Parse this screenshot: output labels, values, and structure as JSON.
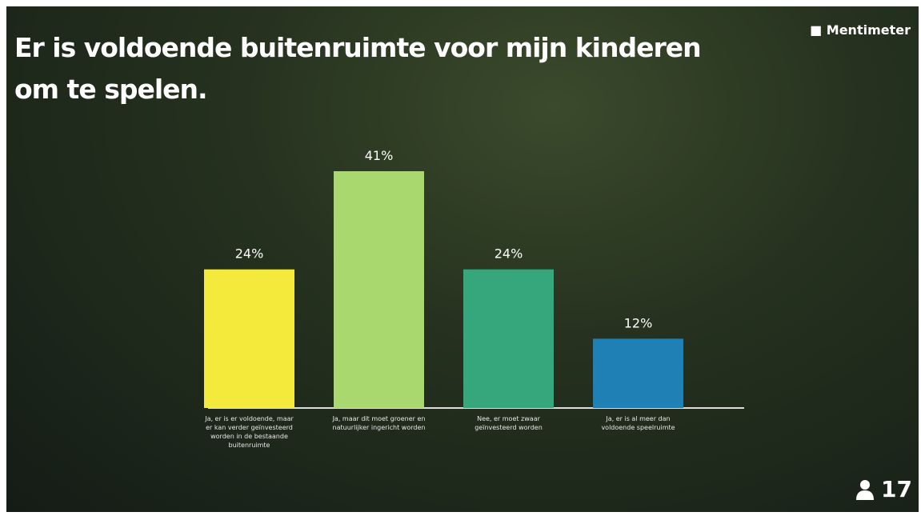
{
  "brand": "Mentimeter",
  "participant_count": 17,
  "chart_data": {
    "type": "bar",
    "title": "Er is voldoende buitenruimte voor mijn kinderen om te spelen.",
    "categories": [
      "Ja, er is er voldoende, maar er kan verder geïnvesteerd worden in de bestaande buitenruimte",
      "Ja, maar dit moet groener en natuurlijker ingericht worden",
      "Nee, er moet zwaar geïnvesteerd worden",
      "Ja, er is al meer dan voldoende speelruimte"
    ],
    "values": [
      24,
      41,
      24,
      12
    ],
    "value_labels": [
      "24%",
      "41%",
      "24%",
      "12%"
    ],
    "colors": [
      "#f4ea3c",
      "#a8d86e",
      "#36a67c",
      "#1f80b6"
    ]
  }
}
